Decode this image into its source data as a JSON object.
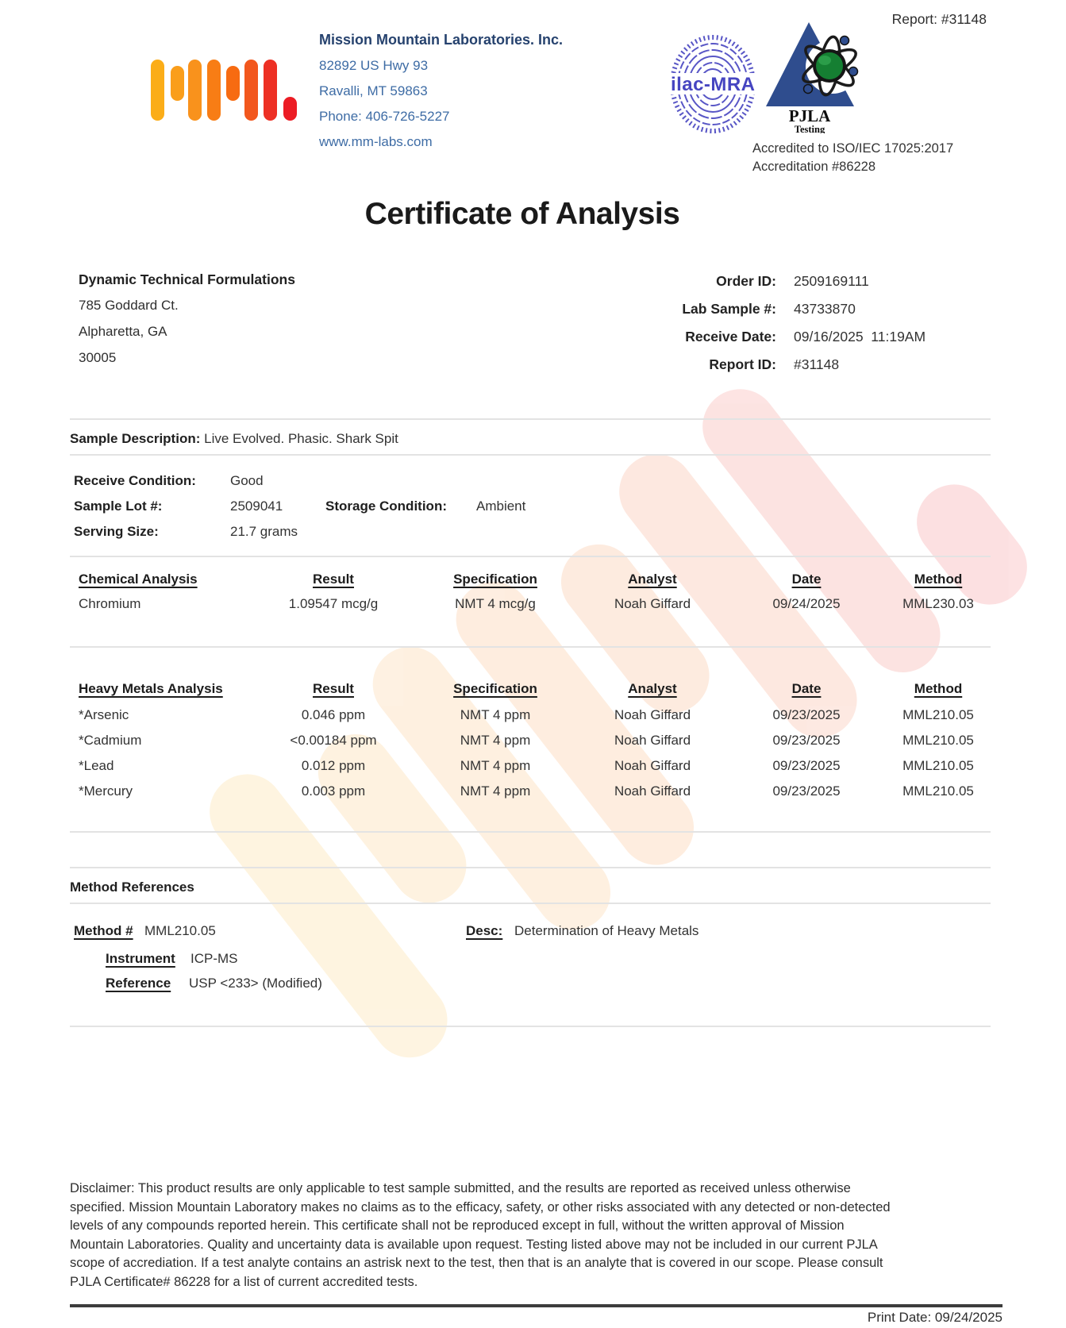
{
  "report_ref": "Report: #31148",
  "lab": {
    "name": "Mission Mountain Laboratories. Inc.",
    "address_line1": "82892 US Hwy 93",
    "address_line2": "Ravalli, MT 59863",
    "phone": "Phone: 406-726-5227",
    "website": "www.mm-labs.com"
  },
  "logo": {
    "bars": [
      {
        "size": "tall",
        "color": "#FBAD18"
      },
      {
        "size": "short",
        "color": "#FA9E1B"
      },
      {
        "size": "tall",
        "color": "#F9921C"
      },
      {
        "size": "tall",
        "color": "#F87D15"
      },
      {
        "size": "short",
        "color": "#F76B11"
      },
      {
        "size": "tall",
        "color": "#F2571D"
      },
      {
        "size": "tall",
        "color": "#ED3024"
      },
      {
        "size": "dot",
        "color": "#EC1C24"
      }
    ]
  },
  "accreditation": {
    "ilac_text": "ilac-MRA",
    "pjla_text": "PJLA",
    "pjla_sub": "Testing",
    "line1": "Accredited to ISO/IEC 17025:2017",
    "line2": "Accreditation #86228",
    "ilac_color": "#4645C1",
    "pjla_color": "#2F4D8E"
  },
  "title": "Certificate of Analysis",
  "customer": {
    "name": "Dynamic Technical Formulations",
    "address1": "785 Goddard Ct.",
    "address2": "Alpharetta, GA",
    "zip": "30005"
  },
  "order_info": {
    "rows": [
      {
        "label": "Order ID:",
        "value": "2509169111"
      },
      {
        "label": "Lab Sample #:",
        "value": "43733870"
      },
      {
        "label": "Receive Date:",
        "value": "09/16/2025  11:19AM"
      },
      {
        "label": "Report ID:",
        "value": "#31148"
      }
    ]
  },
  "sample": {
    "description_label": "Sample Description:",
    "description": "Live Evolved. Phasic. Shark Spit",
    "receive_condition_label": "Receive Condition:",
    "receive_condition": "Good",
    "lot_label": "Sample Lot #:",
    "lot": "2509041",
    "storage_label": "Storage Condition:",
    "storage": "Ambient",
    "serving_label": "Serving Size:",
    "serving": "21.7 grams"
  },
  "chemical_table": {
    "headers": [
      "Chemical Analysis",
      "Result",
      "Specification",
      "Analyst",
      "Date",
      "Method"
    ],
    "rows": [
      [
        "Chromium",
        "1.09547 mcg/g",
        "NMT 4 mcg/g",
        "Noah Giffard",
        "09/24/2025",
        "MML230.03"
      ]
    ]
  },
  "heavy_metals_table": {
    "headers": [
      "Heavy Metals Analysis",
      "Result",
      "Specification",
      "Analyst",
      "Date",
      "Method"
    ],
    "rows": [
      [
        "*Arsenic",
        "0.046 ppm",
        "NMT 4 ppm",
        "Noah Giffard",
        "09/23/2025",
        "MML210.05"
      ],
      [
        "*Cadmium",
        "<0.00184 ppm",
        "NMT 4 ppm",
        "Noah Giffard",
        "09/23/2025",
        "MML210.05"
      ],
      [
        "*Lead",
        "0.012 ppm",
        "NMT 4 ppm",
        "Noah Giffard",
        "09/23/2025",
        "MML210.05"
      ],
      [
        "*Mercury",
        "0.003 ppm",
        "NMT 4 ppm",
        "Noah Giffard",
        "09/23/2025",
        "MML210.05"
      ]
    ]
  },
  "method_references": {
    "heading": "Method References",
    "method_label": "Method #",
    "method_value": "MML210.05",
    "desc_label": "Desc:",
    "desc_value": "Determination of Heavy Metals",
    "instrument_label": "Instrument",
    "instrument_value": "ICP-MS",
    "reference_label": "Reference",
    "reference_value": "USP <233> (Modified)"
  },
  "disclaimer_lines": [
    "Disclaimer: This product results are only applicable to test sample submitted, and the results are reported as received unless otherwise",
    "specified. Mission Mountain Laboratory makes no claims as to the efficacy, safety, or other risks associated with any detected or non-detected",
    "levels of any compounds reported herein. This certificate shall not be reproduced except in full, without the written approval of Mission",
    "Mountain Laboratories. Quality and uncertainty data is available upon request. Testing listed above may not be included in our current PJLA",
    "scope of accrediation. If a test analyte contains an astrisk next to the test, then that is an analyte that is covered in our scope. Please consult",
    "PJLA Certificate# 86228 for a list of current accredited tests."
  ],
  "footer": {
    "print_date": "Print Date: 09/24/2025"
  },
  "colors": {
    "company_name": "#26426E",
    "company_address": "#3E6CA5",
    "divider": "#e3e3e3",
    "footer_line": "#3d3d3d",
    "body_text": "#333333"
  }
}
